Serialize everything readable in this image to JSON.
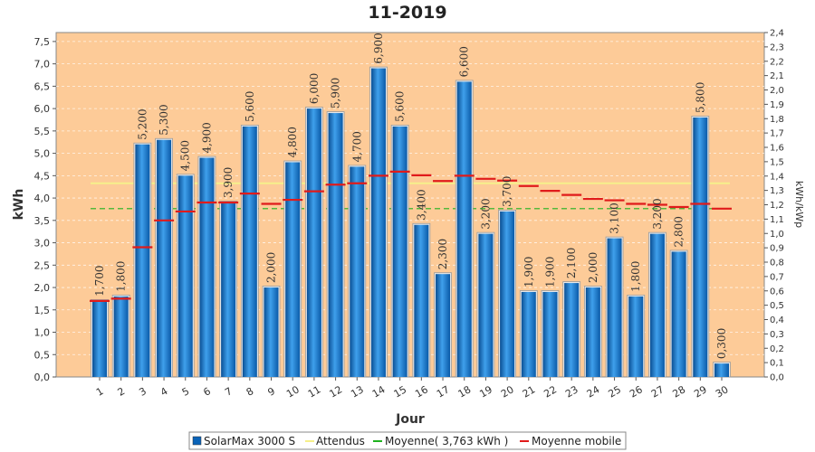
{
  "chart_data": {
    "type": "bar",
    "title": "11-2019",
    "xlabel": "Jour",
    "ylabel": "kWh",
    "ylabel_right": "kWh/kWp",
    "ylim": [
      0,
      7.7
    ],
    "ylim_right": [
      0,
      2.4
    ],
    "y_ticks": [
      "0,0",
      "0,5",
      "1,0",
      "1,5",
      "2,0",
      "2,5",
      "3,0",
      "3,5",
      "4,0",
      "4,5",
      "5,0",
      "5,5",
      "6,0",
      "6,5",
      "7,0",
      "7,5"
    ],
    "y_ticks_right": [
      "0,0",
      "0,1",
      "0,2",
      "0,3",
      "0,4",
      "0,5",
      "0,6",
      "0,7",
      "0,8",
      "0,9",
      "1,0",
      "1,1",
      "1,2",
      "1,3",
      "1,4",
      "1,5",
      "1,6",
      "1,7",
      "1,8",
      "1,9",
      "2,0",
      "2,1",
      "2,2",
      "2,3",
      "2,4"
    ],
    "categories": [
      "1",
      "2",
      "3",
      "4",
      "5",
      "6",
      "7",
      "8",
      "9",
      "10",
      "11",
      "12",
      "13",
      "14",
      "15",
      "16",
      "17",
      "18",
      "19",
      "20",
      "21",
      "22",
      "23",
      "24",
      "25",
      "26",
      "27",
      "28",
      "29",
      "30"
    ],
    "series": [
      {
        "name": "SolarMax 3000 S",
        "type": "bar",
        "values": [
          1.7,
          1.8,
          5.2,
          5.3,
          4.5,
          4.9,
          3.9,
          5.6,
          2.0,
          4.8,
          6.0,
          5.9,
          4.7,
          6.9,
          5.6,
          3.4,
          2.3,
          6.6,
          3.2,
          3.7,
          1.9,
          1.9,
          2.1,
          2.0,
          3.1,
          1.8,
          3.2,
          2.8,
          5.8,
          0.3
        ],
        "labels": [
          "1,700",
          "1,800",
          "5,200",
          "5,300",
          "4,500",
          "4,900",
          "3,900",
          "5,600",
          "2,000",
          "4,800",
          "6,000",
          "5,900",
          "4,700",
          "6,900",
          "5,600",
          "3,400",
          "2,300",
          "6,600",
          "3,200",
          "3,700",
          "1,900",
          "1,900",
          "2,100",
          "2,000",
          "3,100",
          "1,800",
          "3,200",
          "2,800",
          "5,800",
          "0,300"
        ]
      },
      {
        "name": "Attendus",
        "type": "line",
        "value": 4.33
      },
      {
        "name": "Moyenne( 3,763 kWh )",
        "type": "line",
        "value": 3.763
      },
      {
        "name": "Moyenne mobile",
        "type": "step",
        "values": [
          1.7,
          1.75,
          2.9,
          3.5,
          3.7,
          3.9,
          3.9,
          4.1,
          3.87,
          3.96,
          4.15,
          4.3,
          4.33,
          4.5,
          4.59,
          4.51,
          4.38,
          4.5,
          4.43,
          4.39,
          4.27,
          4.16,
          4.07,
          3.98,
          3.95,
          3.87,
          3.85,
          3.8,
          3.87,
          3.763
        ]
      }
    ],
    "grid": true,
    "legend_position": "bottom",
    "colors": {
      "bar": "#0a63b8",
      "bar_highlight": "#3fa0ec",
      "plot_bg": "#fdcb98",
      "attendus": "#f6f08a",
      "moyenne": "#1fb21f",
      "moyenne_mobile": "#e01b1b"
    }
  }
}
